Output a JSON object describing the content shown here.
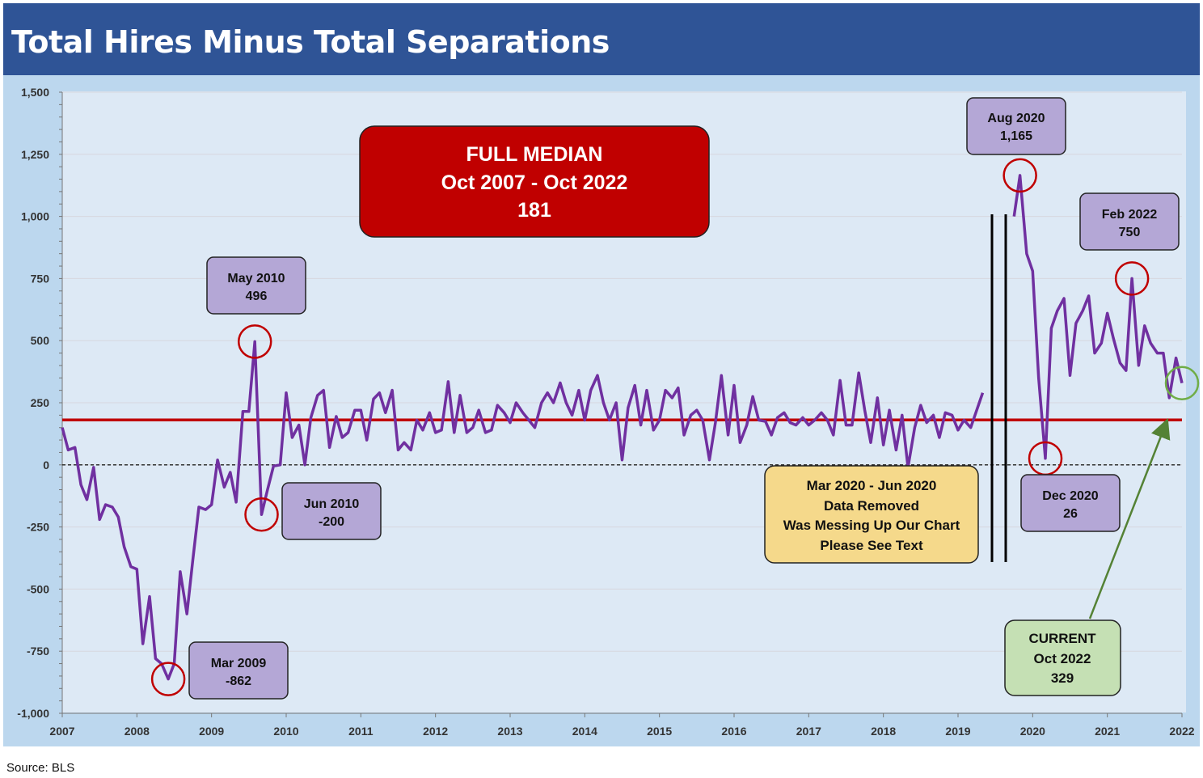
{
  "chart_data": {
    "type": "line",
    "title": "Total Hires Minus Total Separations",
    "source": "Source: BLS",
    "xlim": [
      2007,
      2022
    ],
    "ylim": [
      -1000,
      1500
    ],
    "x_ticks": [
      "2007",
      "2008",
      "2009",
      "2010",
      "2011",
      "2012",
      "2013",
      "2014",
      "2015",
      "2016",
      "2017",
      "2018",
      "2019",
      "2020",
      "2021",
      "2022"
    ],
    "y_ticks": [
      {
        "v": 1500,
        "l": "1,500"
      },
      {
        "v": 1250,
        "l": "1,250"
      },
      {
        "v": 1000,
        "l": "1,000"
      },
      {
        "v": 750,
        "l": "750"
      },
      {
        "v": 500,
        "l": "500"
      },
      {
        "v": 250,
        "l": "250"
      },
      {
        "v": 0,
        "l": "0"
      },
      {
        "v": -250,
        "l": "-250"
      },
      {
        "v": -500,
        "l": "-500"
      },
      {
        "v": -750,
        "l": "-750"
      },
      {
        "v": -1000,
        "l": "-1,000"
      }
    ],
    "median": 181,
    "zero_line": "dashed",
    "colors": {
      "series": "#7030a0",
      "median": "#c00000",
      "highlight_circle": "#c00000",
      "current_circle": "#70ad47",
      "arrow": "#548235"
    },
    "series": [
      {
        "values": [
          [
            2007.0,
            150
          ],
          [
            2007.08,
            60
          ],
          [
            2007.17,
            70
          ],
          [
            2007.25,
            -80
          ],
          [
            2007.33,
            -140
          ],
          [
            2007.42,
            -10
          ],
          [
            2007.5,
            -220
          ],
          [
            2007.58,
            -160
          ],
          [
            2007.67,
            -170
          ],
          [
            2007.75,
            -210
          ],
          [
            2007.83,
            -330
          ],
          [
            2007.92,
            -410
          ],
          [
            2008.0,
            -420
          ],
          [
            2008.08,
            -720
          ],
          [
            2008.17,
            -530
          ],
          [
            2008.25,
            -780
          ],
          [
            2008.33,
            -800
          ],
          [
            2008.42,
            -862
          ],
          [
            2008.5,
            -800
          ],
          [
            2008.58,
            -430
          ],
          [
            2008.67,
            -600
          ],
          [
            2008.75,
            -380
          ],
          [
            2008.83,
            -170
          ],
          [
            2008.92,
            -180
          ],
          [
            2009.0,
            -160
          ],
          [
            2009.08,
            20
          ],
          [
            2009.17,
            -90
          ],
          [
            2009.25,
            -30
          ],
          [
            2009.33,
            -150
          ],
          [
            2009.42,
            215
          ],
          [
            2009.5,
            215
          ],
          [
            2009.58,
            496
          ],
          [
            2009.67,
            -200
          ],
          [
            2009.75,
            -100
          ],
          [
            2009.83,
            -5
          ],
          [
            2009.92,
            0
          ],
          [
            2010.0,
            290
          ],
          [
            2010.08,
            110
          ],
          [
            2010.17,
            160
          ],
          [
            2010.25,
            0
          ],
          [
            2010.33,
            190
          ],
          [
            2010.42,
            280
          ],
          [
            2010.5,
            300
          ],
          [
            2010.58,
            70
          ],
          [
            2010.67,
            195
          ],
          [
            2010.75,
            110
          ],
          [
            2010.83,
            130
          ],
          [
            2010.92,
            220
          ],
          [
            2011.0,
            220
          ],
          [
            2011.08,
            100
          ],
          [
            2011.17,
            265
          ],
          [
            2011.25,
            290
          ],
          [
            2011.33,
            210
          ],
          [
            2011.42,
            300
          ],
          [
            2011.5,
            60
          ],
          [
            2011.58,
            90
          ],
          [
            2011.67,
            60
          ],
          [
            2011.75,
            180
          ],
          [
            2011.83,
            140
          ],
          [
            2011.92,
            210
          ],
          [
            2012.0,
            130
          ],
          [
            2012.08,
            140
          ],
          [
            2012.17,
            335
          ],
          [
            2012.25,
            130
          ],
          [
            2012.33,
            280
          ],
          [
            2012.42,
            130
          ],
          [
            2012.5,
            150
          ],
          [
            2012.58,
            220
          ],
          [
            2012.67,
            130
          ],
          [
            2012.75,
            140
          ],
          [
            2012.83,
            240
          ],
          [
            2012.92,
            210
          ],
          [
            2013.0,
            170
          ],
          [
            2013.08,
            250
          ],
          [
            2013.17,
            210
          ],
          [
            2013.25,
            180
          ],
          [
            2013.33,
            150
          ],
          [
            2013.42,
            250
          ],
          [
            2013.5,
            290
          ],
          [
            2013.58,
            250
          ],
          [
            2013.67,
            330
          ],
          [
            2013.75,
            250
          ],
          [
            2013.83,
            200
          ],
          [
            2013.92,
            300
          ],
          [
            2014.0,
            180
          ],
          [
            2014.08,
            300
          ],
          [
            2014.17,
            360
          ],
          [
            2014.25,
            250
          ],
          [
            2014.33,
            180
          ],
          [
            2014.42,
            250
          ],
          [
            2014.5,
            20
          ],
          [
            2014.58,
            230
          ],
          [
            2014.67,
            320
          ],
          [
            2014.75,
            160
          ],
          [
            2014.83,
            300
          ],
          [
            2014.92,
            140
          ],
          [
            2015.0,
            180
          ],
          [
            2015.08,
            300
          ],
          [
            2015.17,
            270
          ],
          [
            2015.25,
            310
          ],
          [
            2015.33,
            120
          ],
          [
            2015.42,
            200
          ],
          [
            2015.5,
            220
          ],
          [
            2015.58,
            180
          ],
          [
            2015.67,
            20
          ],
          [
            2015.75,
            170
          ],
          [
            2015.83,
            360
          ],
          [
            2015.92,
            120
          ],
          [
            2016.0,
            320
          ],
          [
            2016.08,
            90
          ],
          [
            2016.17,
            160
          ],
          [
            2016.25,
            275
          ],
          [
            2016.33,
            180
          ],
          [
            2016.42,
            175
          ],
          [
            2016.5,
            120
          ],
          [
            2016.58,
            190
          ],
          [
            2016.67,
            210
          ],
          [
            2016.75,
            170
          ],
          [
            2016.83,
            160
          ],
          [
            2016.92,
            190
          ],
          [
            2017.0,
            160
          ],
          [
            2017.08,
            180
          ],
          [
            2017.17,
            210
          ],
          [
            2017.25,
            180
          ],
          [
            2017.33,
            120
          ],
          [
            2017.42,
            340
          ],
          [
            2017.5,
            160
          ],
          [
            2017.58,
            160
          ],
          [
            2017.67,
            370
          ],
          [
            2017.75,
            220
          ],
          [
            2017.83,
            90
          ],
          [
            2017.92,
            270
          ],
          [
            2018.0,
            80
          ],
          [
            2018.08,
            220
          ],
          [
            2018.17,
            60
          ],
          [
            2018.25,
            200
          ],
          [
            2018.33,
            -10
          ],
          [
            2018.42,
            150
          ],
          [
            2018.5,
            240
          ],
          [
            2018.58,
            170
          ],
          [
            2018.67,
            200
          ],
          [
            2018.75,
            110
          ],
          [
            2018.83,
            210
          ],
          [
            2018.92,
            200
          ],
          [
            2019.0,
            140
          ],
          [
            2019.08,
            180
          ],
          [
            2019.17,
            150
          ],
          [
            2019.25,
            220
          ],
          [
            2019.33,
            290
          ],
          null,
          [
            2019.75,
            1000
          ],
          [
            2019.83,
            1165
          ],
          [
            2019.92,
            850
          ],
          [
            2020.0,
            780
          ],
          [
            2020.08,
            350
          ],
          [
            2020.17,
            26
          ],
          [
            2020.25,
            550
          ],
          [
            2020.33,
            620
          ],
          [
            2020.42,
            670
          ],
          [
            2020.5,
            360
          ],
          [
            2020.58,
            570
          ],
          [
            2020.67,
            620
          ],
          [
            2020.75,
            680
          ],
          [
            2020.83,
            450
          ],
          [
            2020.92,
            490
          ],
          [
            2021.0,
            610
          ],
          [
            2021.08,
            510
          ],
          [
            2021.17,
            410
          ],
          [
            2021.25,
            380
          ],
          [
            2021.33,
            750
          ],
          [
            2021.42,
            400
          ],
          [
            2021.5,
            560
          ],
          [
            2021.58,
            490
          ],
          [
            2021.67,
            450
          ],
          [
            2021.75,
            450
          ],
          [
            2021.83,
            270
          ],
          [
            2021.92,
            430
          ],
          [
            2022.0,
            329
          ]
        ]
      }
    ],
    "annotations": {
      "median_box": [
        "FULL MEDIAN",
        "Oct 2007 - Oct 2022",
        "181"
      ],
      "may2010": [
        "May 2010",
        "496"
      ],
      "jun2010": [
        "Jun 2010",
        "-200"
      ],
      "mar2009": [
        "Mar 2009",
        "-862"
      ],
      "aug2020": [
        "Aug 2020",
        "1,165"
      ],
      "feb2022": [
        "Feb 2022",
        "750"
      ],
      "dec2020": [
        "Dec 2020",
        "26"
      ],
      "removed": [
        "Mar 2020 - Jun 2020",
        "Data Removed",
        "Was Messing Up Our Chart",
        "Please See Text"
      ],
      "current": [
        "CURRENT",
        "Oct 2022",
        "329"
      ]
    }
  }
}
